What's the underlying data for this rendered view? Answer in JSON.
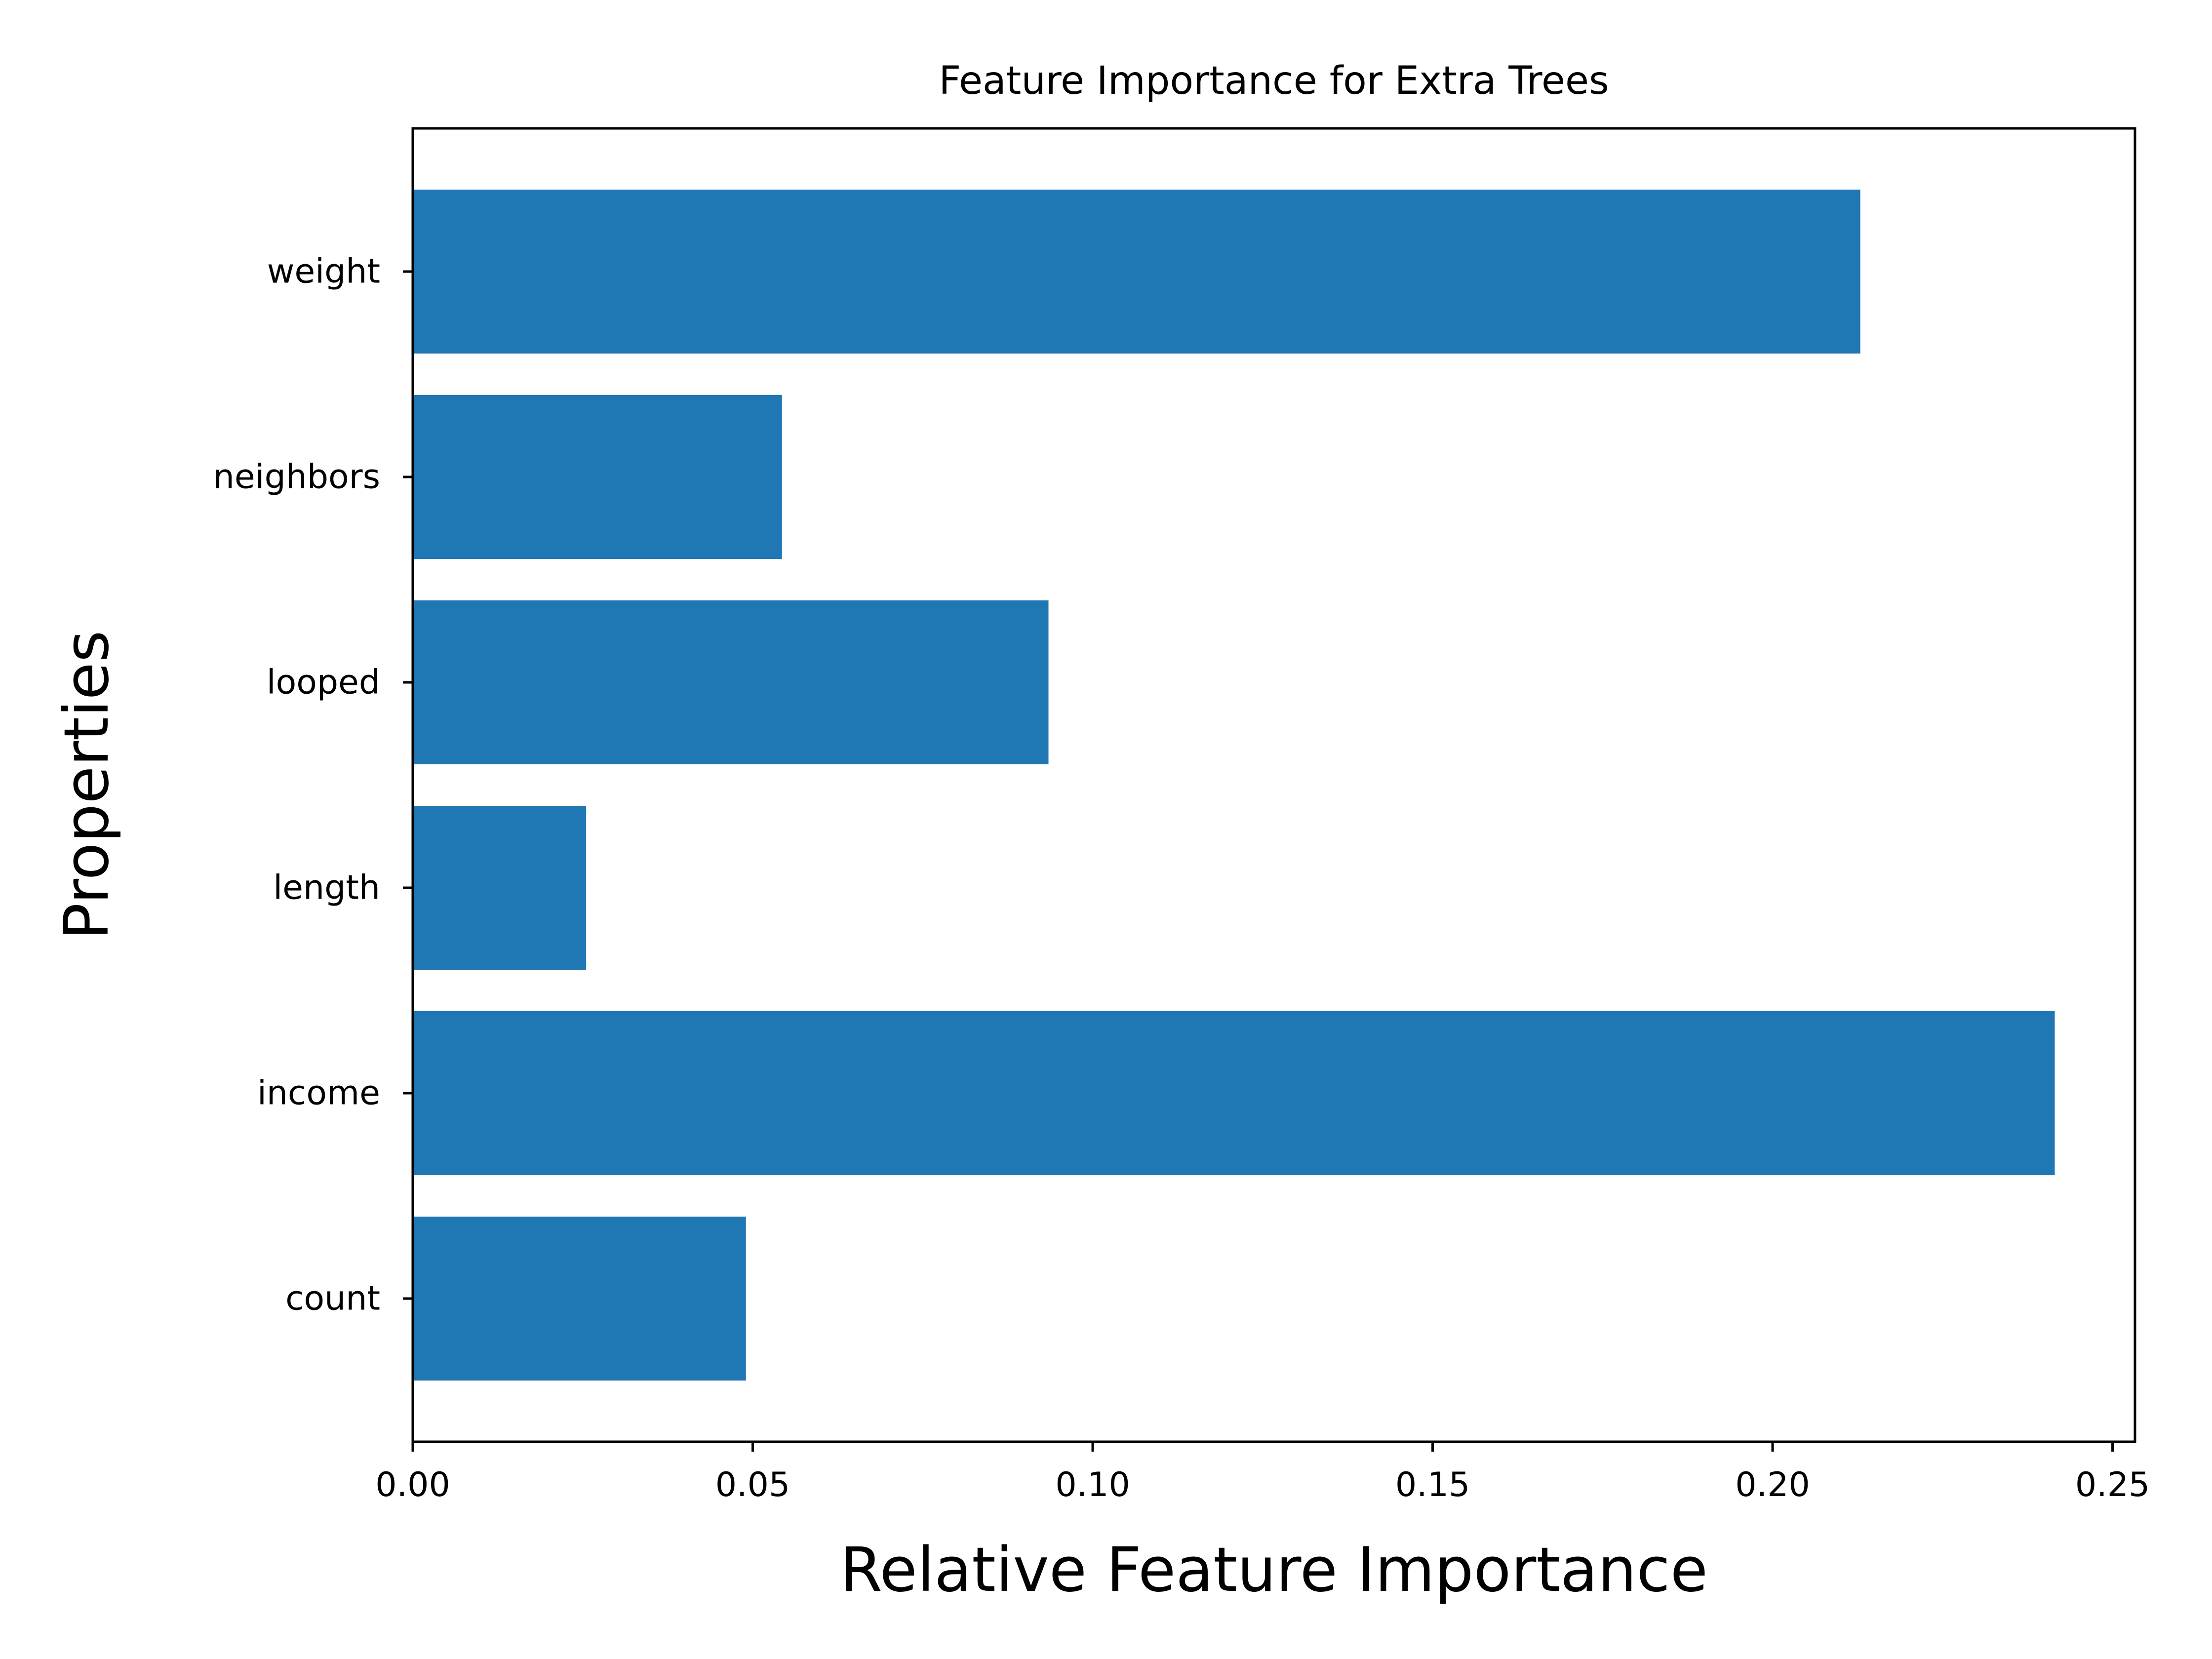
{
  "chart_data": {
    "type": "bar",
    "orientation": "horizontal",
    "title": "Feature Importance for Extra Trees",
    "xlabel": "Relative Feature Importance",
    "ylabel": "Properties",
    "categories": [
      "count",
      "income",
      "length",
      "looped",
      "neighbors",
      "weight"
    ],
    "values": [
      0.049,
      0.2415,
      0.0255,
      0.0935,
      0.0543,
      0.2129
    ],
    "xlim": [
      0.0,
      0.2533
    ],
    "x_ticks": [
      0.0,
      0.05,
      0.1,
      0.15,
      0.2,
      0.25
    ],
    "x_tick_labels": [
      "0.00",
      "0.05",
      "0.10",
      "0.15",
      "0.20",
      "0.25"
    ],
    "bar_color": "#1f77b4",
    "grid": false,
    "legend": "none"
  }
}
